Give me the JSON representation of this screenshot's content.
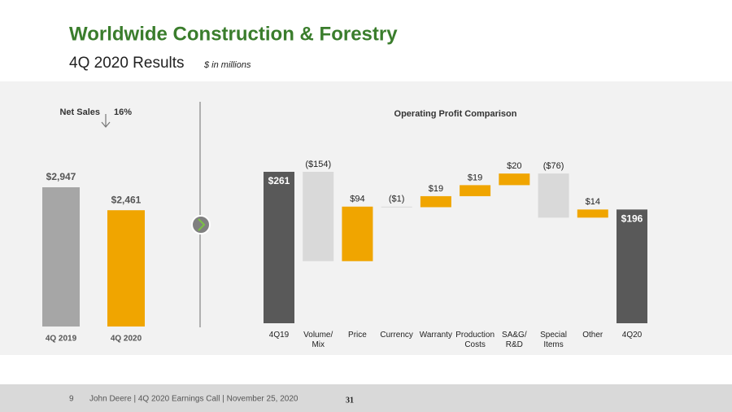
{
  "header": {
    "title": "Worldwide Construction & Forestry",
    "subtitle": "4Q 2020 Results",
    "subtitle_note": "$ in millions"
  },
  "chart_data": [
    {
      "type": "bar",
      "title": "Net Sales",
      "change": "16%",
      "categories": [
        "4Q 2019",
        "4Q 2020"
      ],
      "values": [
        2947,
        2461
      ],
      "value_labels": [
        "$2,947",
        "$2,461"
      ],
      "colors": [
        "#a6a6a6",
        "#f0a500"
      ]
    },
    {
      "type": "waterfall",
      "title": "Operating Profit Comparison",
      "categories": [
        "4Q19",
        "Volume/ Mix",
        "Price",
        "Currency",
        "Warranty",
        "Production Costs",
        "SA&G/ R&D",
        "Special Items",
        "Other",
        "4Q20"
      ],
      "values": [
        261,
        -154,
        94,
        -1,
        19,
        19,
        20,
        -76,
        14,
        196
      ],
      "value_labels": [
        "$261",
        "($154)",
        "$94",
        "($1)",
        "$19",
        "$19",
        "$20",
        "($76)",
        "$14",
        "$196"
      ],
      "is_total": [
        true,
        false,
        false,
        false,
        false,
        false,
        false,
        false,
        false,
        true
      ],
      "colors": {
        "total": "#595959",
        "increase": "#f0a500",
        "decrease": "#d9d9d9"
      }
    }
  ],
  "footer": {
    "page": "9",
    "text": "John Deere | 4Q 2020 Earnings Call | November 25, 2020",
    "number": "31"
  }
}
